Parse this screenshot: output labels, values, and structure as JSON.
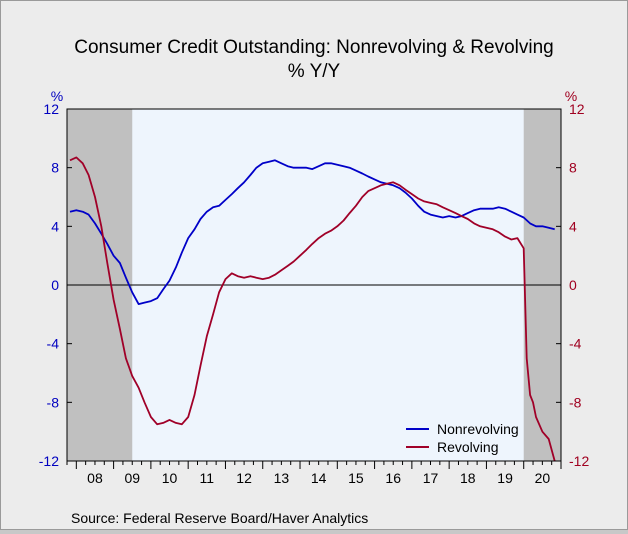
{
  "chart_data": {
    "type": "line",
    "title": "Consumer Credit Outstanding: Nonrevolving & Revolving",
    "subtitle": "% Y/Y",
    "left_unit": "%",
    "right_unit": "%",
    "ylim": [
      -12,
      12
    ],
    "yticks": [
      -12,
      -8,
      -4,
      0,
      4,
      8,
      12
    ],
    "xlim": [
      2007.75,
      2021.0
    ],
    "xticks": [
      "08",
      "09",
      "10",
      "11",
      "12",
      "13",
      "14",
      "15",
      "16",
      "17",
      "18",
      "19",
      "20"
    ],
    "zero_line": true,
    "grid": false,
    "legend_position": "bottom-right",
    "shaded_periods": [
      [
        2007.75,
        2009.5
      ],
      [
        2020.0,
        2021.0
      ]
    ],
    "plot_background": "#eef5fd",
    "recession_color": "#c0c0c0",
    "colors": {
      "left_axis": "#0000c0",
      "right_axis": "#a00020"
    },
    "series": [
      {
        "name": "Nonrevolving",
        "color": "#0000c8",
        "points": [
          [
            2007.83,
            5.0
          ],
          [
            2008.0,
            5.1
          ],
          [
            2008.17,
            5.0
          ],
          [
            2008.33,
            4.8
          ],
          [
            2008.5,
            4.2
          ],
          [
            2008.67,
            3.5
          ],
          [
            2008.83,
            2.8
          ],
          [
            2009.0,
            2.0
          ],
          [
            2009.17,
            1.5
          ],
          [
            2009.33,
            0.5
          ],
          [
            2009.5,
            -0.5
          ],
          [
            2009.67,
            -1.3
          ],
          [
            2009.83,
            -1.2
          ],
          [
            2010.0,
            -1.1
          ],
          [
            2010.17,
            -0.9
          ],
          [
            2010.33,
            -0.3
          ],
          [
            2010.5,
            0.3
          ],
          [
            2010.67,
            1.2
          ],
          [
            2010.83,
            2.2
          ],
          [
            2011.0,
            3.2
          ],
          [
            2011.17,
            3.8
          ],
          [
            2011.33,
            4.5
          ],
          [
            2011.5,
            5.0
          ],
          [
            2011.67,
            5.3
          ],
          [
            2011.83,
            5.4
          ],
          [
            2012.0,
            5.8
          ],
          [
            2012.17,
            6.2
          ],
          [
            2012.33,
            6.6
          ],
          [
            2012.5,
            7.0
          ],
          [
            2012.67,
            7.5
          ],
          [
            2012.83,
            8.0
          ],
          [
            2013.0,
            8.3
          ],
          [
            2013.17,
            8.4
          ],
          [
            2013.33,
            8.5
          ],
          [
            2013.5,
            8.3
          ],
          [
            2013.67,
            8.1
          ],
          [
            2013.83,
            8.0
          ],
          [
            2014.0,
            8.0
          ],
          [
            2014.17,
            8.0
          ],
          [
            2014.33,
            7.9
          ],
          [
            2014.5,
            8.1
          ],
          [
            2014.67,
            8.3
          ],
          [
            2014.83,
            8.3
          ],
          [
            2015.0,
            8.2
          ],
          [
            2015.17,
            8.1
          ],
          [
            2015.33,
            8.0
          ],
          [
            2015.5,
            7.8
          ],
          [
            2015.67,
            7.6
          ],
          [
            2015.83,
            7.4
          ],
          [
            2016.0,
            7.2
          ],
          [
            2016.17,
            7.0
          ],
          [
            2016.33,
            6.9
          ],
          [
            2016.5,
            6.8
          ],
          [
            2016.67,
            6.6
          ],
          [
            2016.83,
            6.3
          ],
          [
            2017.0,
            5.9
          ],
          [
            2017.17,
            5.4
          ],
          [
            2017.33,
            5.0
          ],
          [
            2017.5,
            4.8
          ],
          [
            2017.67,
            4.7
          ],
          [
            2017.83,
            4.6
          ],
          [
            2018.0,
            4.7
          ],
          [
            2018.17,
            4.6
          ],
          [
            2018.33,
            4.7
          ],
          [
            2018.5,
            4.9
          ],
          [
            2018.67,
            5.1
          ],
          [
            2018.83,
            5.2
          ],
          [
            2019.0,
            5.2
          ],
          [
            2019.17,
            5.2
          ],
          [
            2019.33,
            5.3
          ],
          [
            2019.5,
            5.2
          ],
          [
            2019.67,
            5.0
          ],
          [
            2019.83,
            4.8
          ],
          [
            2020.0,
            4.6
          ],
          [
            2020.17,
            4.2
          ],
          [
            2020.33,
            4.0
          ],
          [
            2020.5,
            4.0
          ],
          [
            2020.67,
            3.9
          ],
          [
            2020.83,
            3.8
          ]
        ]
      },
      {
        "name": "Revolving",
        "color": "#a00028",
        "points": [
          [
            2007.83,
            8.5
          ],
          [
            2008.0,
            8.7
          ],
          [
            2008.17,
            8.3
          ],
          [
            2008.33,
            7.5
          ],
          [
            2008.5,
            6.0
          ],
          [
            2008.67,
            4.0
          ],
          [
            2008.83,
            1.5
          ],
          [
            2009.0,
            -1.0
          ],
          [
            2009.17,
            -3.0
          ],
          [
            2009.33,
            -5.0
          ],
          [
            2009.5,
            -6.2
          ],
          [
            2009.67,
            -7.0
          ],
          [
            2009.83,
            -8.0
          ],
          [
            2010.0,
            -9.0
          ],
          [
            2010.17,
            -9.5
          ],
          [
            2010.33,
            -9.4
          ],
          [
            2010.5,
            -9.2
          ],
          [
            2010.67,
            -9.4
          ],
          [
            2010.83,
            -9.5
          ],
          [
            2011.0,
            -9.0
          ],
          [
            2011.17,
            -7.5
          ],
          [
            2011.33,
            -5.5
          ],
          [
            2011.5,
            -3.5
          ],
          [
            2011.67,
            -2.0
          ],
          [
            2011.83,
            -0.5
          ],
          [
            2012.0,
            0.4
          ],
          [
            2012.17,
            0.8
          ],
          [
            2012.33,
            0.6
          ],
          [
            2012.5,
            0.5
          ],
          [
            2012.67,
            0.6
          ],
          [
            2012.83,
            0.5
          ],
          [
            2013.0,
            0.4
          ],
          [
            2013.17,
            0.5
          ],
          [
            2013.33,
            0.7
          ],
          [
            2013.5,
            1.0
          ],
          [
            2013.67,
            1.3
          ],
          [
            2013.83,
            1.6
          ],
          [
            2014.0,
            2.0
          ],
          [
            2014.17,
            2.4
          ],
          [
            2014.33,
            2.8
          ],
          [
            2014.5,
            3.2
          ],
          [
            2014.67,
            3.5
          ],
          [
            2014.83,
            3.7
          ],
          [
            2015.0,
            4.0
          ],
          [
            2015.17,
            4.4
          ],
          [
            2015.33,
            4.9
          ],
          [
            2015.5,
            5.4
          ],
          [
            2015.67,
            6.0
          ],
          [
            2015.83,
            6.4
          ],
          [
            2016.0,
            6.6
          ],
          [
            2016.17,
            6.8
          ],
          [
            2016.33,
            6.9
          ],
          [
            2016.5,
            7.0
          ],
          [
            2016.67,
            6.8
          ],
          [
            2016.83,
            6.5
          ],
          [
            2017.0,
            6.2
          ],
          [
            2017.17,
            5.9
          ],
          [
            2017.33,
            5.7
          ],
          [
            2017.5,
            5.6
          ],
          [
            2017.67,
            5.5
          ],
          [
            2017.83,
            5.3
          ],
          [
            2018.0,
            5.1
          ],
          [
            2018.17,
            4.9
          ],
          [
            2018.33,
            4.7
          ],
          [
            2018.5,
            4.5
          ],
          [
            2018.67,
            4.2
          ],
          [
            2018.83,
            4.0
          ],
          [
            2019.0,
            3.9
          ],
          [
            2019.17,
            3.8
          ],
          [
            2019.33,
            3.6
          ],
          [
            2019.5,
            3.3
          ],
          [
            2019.67,
            3.1
          ],
          [
            2019.83,
            3.2
          ],
          [
            2020.0,
            2.5
          ],
          [
            2020.08,
            -5.0
          ],
          [
            2020.17,
            -7.5
          ],
          [
            2020.25,
            -8.0
          ],
          [
            2020.33,
            -9.0
          ],
          [
            2020.5,
            -10.0
          ],
          [
            2020.67,
            -10.5
          ],
          [
            2020.83,
            -12.0
          ]
        ]
      }
    ],
    "source": "Source:  Federal Reserve Board/Haver Analytics"
  }
}
